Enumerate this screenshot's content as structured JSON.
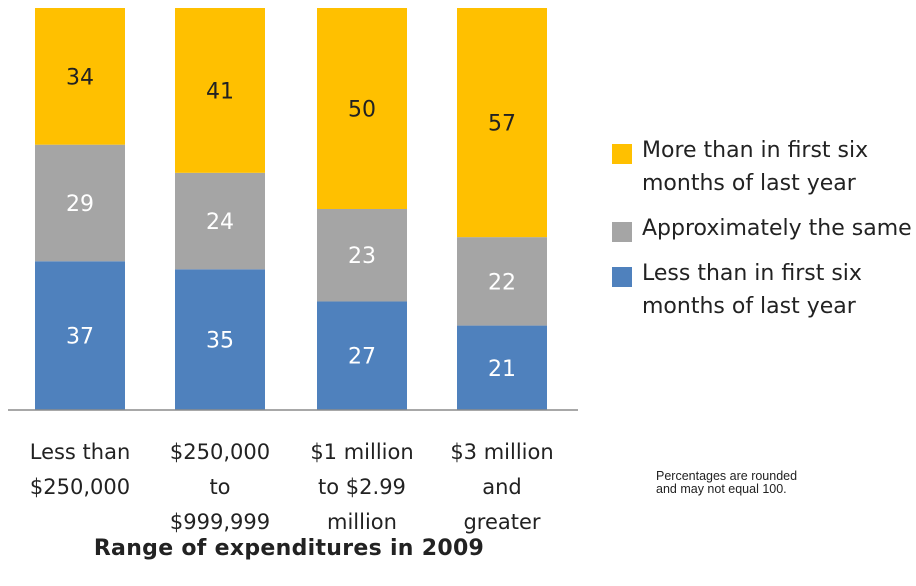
{
  "chart_data": {
    "type": "bar",
    "stacked": true,
    "categories": [
      [
        "Less than",
        "$250,000"
      ],
      [
        "$250,000",
        "to",
        "$999,999"
      ],
      [
        "$1 million",
        "to $2.99",
        "million"
      ],
      [
        "$3 million",
        "and",
        "greater"
      ]
    ],
    "series": [
      {
        "name": "Less than in first six months of last year",
        "color": "#4F81BD",
        "values": [
          37,
          35,
          27,
          21
        ]
      },
      {
        "name": "Approximately the same",
        "color": "#A5A5A5",
        "values": [
          29,
          24,
          23,
          22
        ]
      },
      {
        "name": "More than in first six months of last year",
        "color": "#FFC000",
        "values": [
          34,
          41,
          50,
          57
        ]
      }
    ],
    "xlabel": "Range of expenditures in 2009",
    "ylim": [
      0,
      100
    ],
    "grid": false,
    "legend_position": "right"
  },
  "legend": [
    {
      "label": "More than in first six months of last year",
      "color": "#FFC000"
    },
    {
      "label": "Approximately the same",
      "color": "#A5A5A5"
    },
    {
      "label": "Less than in first six months of last year",
      "color": "#4F81BD"
    }
  ],
  "note": "Percentages are rounded and may not equal 100."
}
